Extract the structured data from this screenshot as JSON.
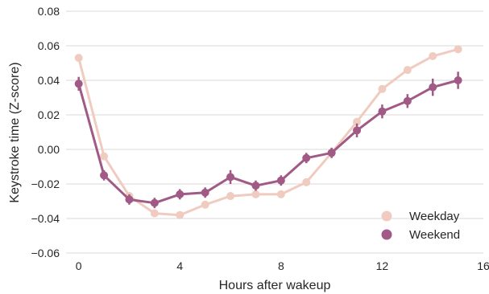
{
  "chart_data": {
    "type": "line",
    "title": "",
    "xlabel": "Hours after wakeup",
    "ylabel": "Keystroke time (Z-score)",
    "xlim": [
      -0.5,
      16
    ],
    "ylim": [
      -0.06,
      0.08
    ],
    "xticks": [
      0,
      4,
      8,
      12,
      16
    ],
    "yticks": [
      -0.06,
      -0.04,
      -0.02,
      0.0,
      0.02,
      0.04,
      0.06,
      0.08
    ],
    "ytick_labels": [
      "−0.06",
      "−0.04",
      "−0.02",
      "0.00",
      "0.02",
      "0.04",
      "0.06",
      "0.08"
    ],
    "grid": "horizontal",
    "legend_position": "bottom-right",
    "x": [
      0,
      1,
      2,
      3,
      4,
      5,
      6,
      7,
      8,
      9,
      10,
      11,
      12,
      13,
      14,
      15
    ],
    "series": [
      {
        "name": "Weekday",
        "color": "#f0cbc0",
        "values": [
          0.053,
          -0.004,
          -0.027,
          -0.037,
          -0.038,
          -0.032,
          -0.027,
          -0.026,
          -0.026,
          -0.019,
          -0.002,
          0.016,
          0.035,
          0.046,
          0.054,
          0.058
        ],
        "errors": [
          0.002,
          0.0015,
          0.0015,
          0.0015,
          0.0015,
          0.0015,
          0.0015,
          0.0015,
          0.0015,
          0.0015,
          0.0015,
          0.002,
          0.002,
          0.002,
          0.002,
          0.002
        ]
      },
      {
        "name": "Weekend",
        "color": "#a05a85",
        "values": [
          0.038,
          -0.015,
          -0.029,
          -0.031,
          -0.026,
          -0.025,
          -0.016,
          -0.021,
          -0.018,
          -0.005,
          -0.002,
          0.011,
          0.022,
          0.028,
          0.036,
          0.04
        ],
        "errors": [
          0.004,
          0.003,
          0.003,
          0.003,
          0.003,
          0.003,
          0.004,
          0.003,
          0.003,
          0.003,
          0.003,
          0.004,
          0.004,
          0.004,
          0.005,
          0.005
        ]
      }
    ]
  }
}
